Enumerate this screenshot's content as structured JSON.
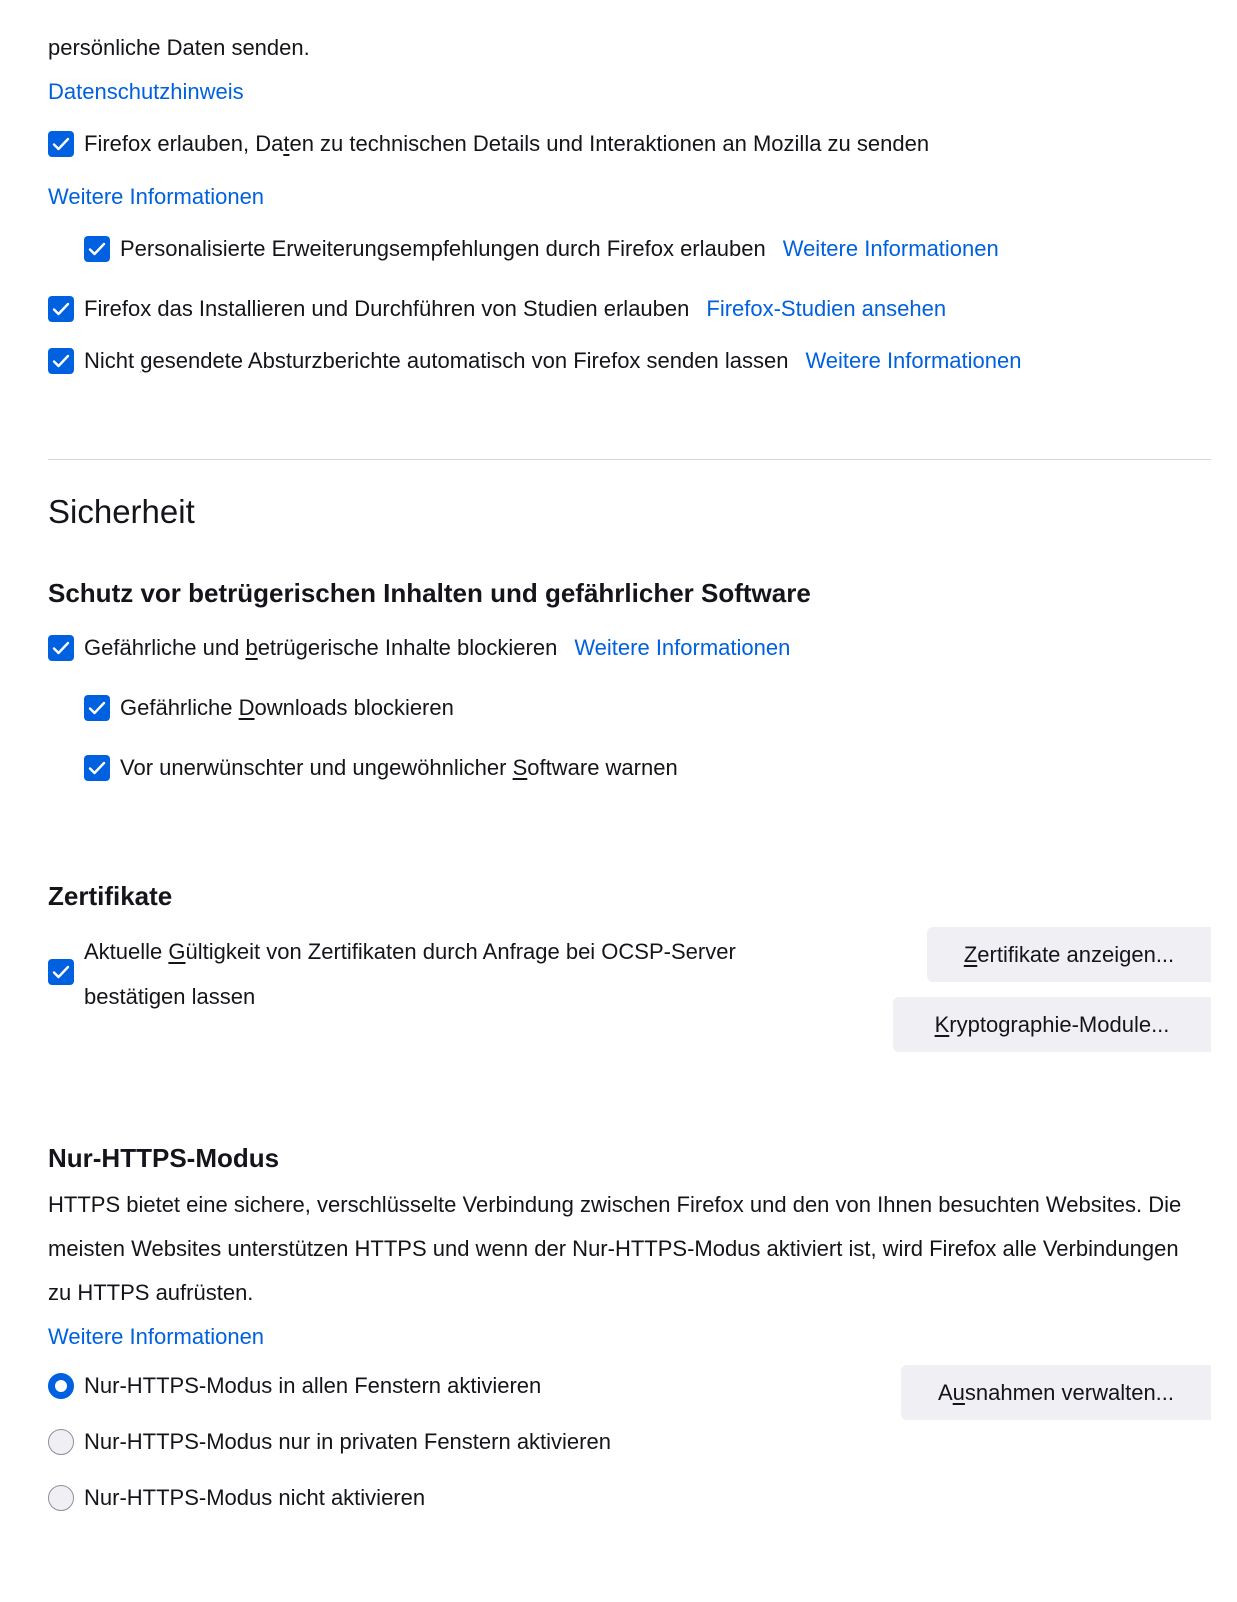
{
  "privacy": {
    "intro_tail": "persönliche Daten senden.",
    "privacy_notice_link": "Datenschutzhinweis",
    "telemetry": {
      "before": "Firefox erlauben, Da",
      "key": "t",
      "after": "en zu technischen Details und Interaktionen an Mozilla zu senden",
      "checked": true
    },
    "telemetry_link": "Weitere Informationen",
    "recommendations": {
      "label": "Personalisierte Erweiterungsempfehlungen durch Firefox erlauben",
      "link": "Weitere Informationen",
      "checked": true
    },
    "studies": {
      "label": "Firefox das Installieren und Durchführen von Studien erlauben",
      "link": "Firefox-Studien ansehen",
      "checked": true
    },
    "crash": {
      "before": "Nicht ",
      "key": "g",
      "after": "esendete Absturzberichte automatisch von Firefox senden lassen",
      "link": "Weitere Informationen",
      "checked": true
    }
  },
  "security": {
    "title": "Sicherheit",
    "deceptive": {
      "heading": "Schutz vor betrügerischen Inhalten und gefährlicher Software",
      "block": {
        "before": "Gefährliche und ",
        "key": "b",
        "after": "etrügerische Inhalte blockieren",
        "link": "Weitere Informationen",
        "checked": true
      },
      "downloads": {
        "before": "Gefährliche ",
        "key": "D",
        "after": "ownloads blockieren",
        "checked": true
      },
      "unwanted": {
        "before": "Vor unerwünschter und ungewöhnlicher ",
        "key": "S",
        "after": "oftware warnen",
        "checked": true
      }
    },
    "certificates": {
      "heading": "Zertifikate",
      "ocsp": {
        "before": "Aktuelle ",
        "key": "G",
        "after": "ültigkeit von Zertifikaten durch Anfrage bei OCSP-Server",
        "line2": "bestätigen lassen",
        "checked": true
      },
      "view_button": {
        "key": "Z",
        "after": "ertifikate anzeigen..."
      },
      "devices_button": {
        "key": "K",
        "after": "ryptographie-Module..."
      }
    },
    "https_only": {
      "heading": "Nur-HTTPS-Modus",
      "description": "HTTPS bietet eine sichere, verschlüsselte Verbindung zwischen Firefox und den von Ihnen besuchten Websites. Die meisten Websites unterstützen HTTPS und wenn der Nur-HTTPS-Modus aktiviert ist, wird Firefox alle Verbindungen zu HTTPS aufrüsten.",
      "link": "Weitere Informationen",
      "options": [
        {
          "label": "Nur-HTTPS-Modus in allen Fenstern aktivieren",
          "selected": true
        },
        {
          "label": "Nur-HTTPS-Modus nur in privaten Fenstern aktivieren",
          "selected": false
        },
        {
          "label": "Nur-HTTPS-Modus nicht aktivieren",
          "selected": false
        }
      ],
      "exceptions_button": {
        "before": "A",
        "key": "u",
        "after": "snahmen verwalten..."
      }
    }
  },
  "colors": {
    "accent": "#0061e0",
    "text": "#15141a",
    "button_bg": "#f0f0f4"
  }
}
